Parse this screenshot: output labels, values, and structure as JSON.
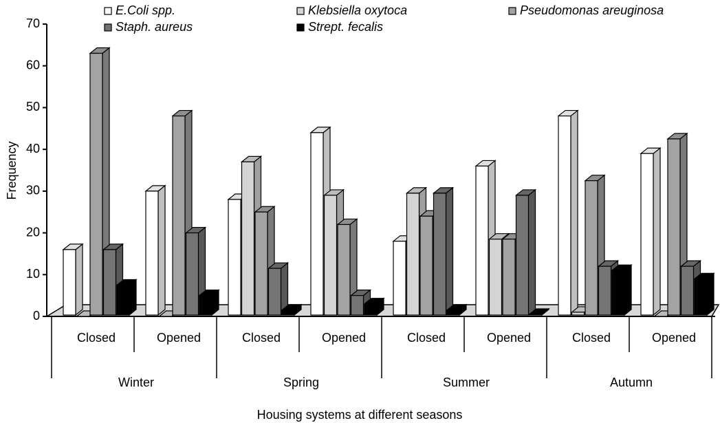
{
  "chart_data": {
    "type": "bar3d",
    "categories": [
      "Closed",
      "Opened",
      "Closed",
      "Opened",
      "Closed",
      "Opened",
      "Closed",
      "Opened"
    ],
    "groups": [
      "Winter",
      "Spring",
      "Summer",
      "Autumn"
    ],
    "ylabel": "Frequency",
    "xlabel": "Housing systems at different seasons",
    "ylim": [
      0,
      70
    ],
    "yticks": [
      0,
      10,
      20,
      30,
      40,
      50,
      60,
      70
    ],
    "series": [
      {
        "name": "E.Coli spp.",
        "color": "#ffffff",
        "values": [
          16,
          30,
          28,
          44,
          18,
          36,
          48,
          39
        ]
      },
      {
        "name": "Klebsiella oxytoca",
        "color": "#d4d4d4",
        "values": [
          0,
          0,
          37,
          29,
          29.5,
          18.5,
          1,
          0
        ]
      },
      {
        "name": "Pseudomonas areuginosa",
        "color": "#a3a3a3",
        "values": [
          63,
          48,
          25,
          22,
          24,
          18.5,
          32.5,
          42.5
        ]
      },
      {
        "name": "Staph. aureus",
        "color": "#747474",
        "values": [
          16,
          20,
          11.5,
          5,
          29.5,
          29,
          12,
          12
        ]
      },
      {
        "name": "Strept. fecalis",
        "color": "#000000",
        "values": [
          7.5,
          5,
          1.5,
          3,
          1.5,
          0.5,
          11,
          9
        ]
      }
    ]
  }
}
